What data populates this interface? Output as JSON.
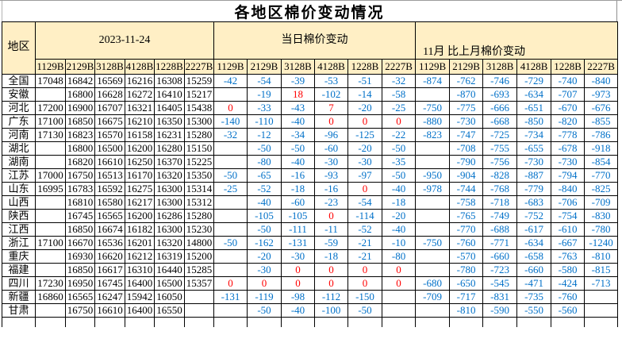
{
  "colors": {
    "header_fill": "#FFEFC5",
    "negative_text": "#0070C8",
    "nonnegative_text": "#FF0000",
    "grid_line": "#000000",
    "window_edge": "#9B9B9B"
  },
  "chart_data": {
    "type": "table",
    "title": "各地区棉价变动情况",
    "region_header": "地区",
    "groups": [
      "2023-11-24",
      "当日棉价变动",
      "11月 比上月棉价变动"
    ],
    "grade_codes": [
      "1129B",
      "2129B",
      "3128B",
      "4128B",
      "1228B",
      "2227B"
    ],
    "rows": [
      {
        "region": "全国",
        "prices": [
          "17048",
          "16842",
          "16569",
          "16216",
          "16308",
          "15259"
        ],
        "daily": [
          "-42",
          "-54",
          "-39",
          "-53",
          "-51",
          "-32"
        ],
        "monthly": [
          "-874",
          "-762",
          "-746",
          "-729",
          "-740",
          "-840"
        ]
      },
      {
        "region": "安徽",
        "prices": [
          "",
          "16800",
          "16628",
          "16272",
          "16410",
          "15217"
        ],
        "daily": [
          "",
          "-19",
          "18",
          "-102",
          "-14",
          "-58"
        ],
        "monthly": [
          "",
          "-870",
          "-693",
          "-634",
          "-707",
          "-973"
        ]
      },
      {
        "region": "河北",
        "prices": [
          "17200",
          "16900",
          "16707",
          "16321",
          "16405",
          "15438"
        ],
        "daily": [
          "0",
          "-33",
          "-43",
          "7",
          "-20",
          "-25"
        ],
        "monthly": [
          "-750",
          "-775",
          "-666",
          "-651",
          "-670",
          "-676"
        ]
      },
      {
        "region": "广东",
        "prices": [
          "17100",
          "16850",
          "16675",
          "16210",
          "16350",
          "15300"
        ],
        "daily": [
          "-140",
          "-110",
          "-40",
          "0",
          "0",
          "0"
        ],
        "monthly": [
          "-880",
          "-730",
          "-668",
          "-850",
          "-820",
          "-855"
        ]
      },
      {
        "region": "河南",
        "prices": [
          "17130",
          "16823",
          "16570",
          "16158",
          "16231",
          "15280"
        ],
        "daily": [
          "-32",
          "-12",
          "-34",
          "-96",
          "-125",
          "-22"
        ],
        "monthly": [
          "-823",
          "-747",
          "-725",
          "-734",
          "-778",
          "-786"
        ]
      },
      {
        "region": "湖北",
        "prices": [
          "",
          "16800",
          "16500",
          "16200",
          "16280",
          "15150"
        ],
        "daily": [
          "",
          "-50",
          "-50",
          "-60",
          "-20",
          "-50"
        ],
        "monthly": [
          "",
          "-708",
          "-755",
          "-655",
          "-678",
          "-918"
        ]
      },
      {
        "region": "湖南",
        "prices": [
          "",
          "16820",
          "16610",
          "16250",
          "16370",
          "15225"
        ],
        "daily": [
          "",
          "-80",
          "-40",
          "-30",
          "-30",
          "-35"
        ],
        "monthly": [
          "",
          "-790",
          "-756",
          "-730",
          "-730",
          "-854"
        ]
      },
      {
        "region": "江苏",
        "prices": [
          "17000",
          "16750",
          "16513",
          "16170",
          "16320",
          "15350"
        ],
        "daily": [
          "-50",
          "-65",
          "-16",
          "-93",
          "-97",
          "-50"
        ],
        "monthly": [
          "-950",
          "-904",
          "-828",
          "-887",
          "-794",
          "-770"
        ]
      },
      {
        "region": "山东",
        "prices": [
          "16995",
          "16783",
          "16592",
          "16275",
          "16300",
          "15314"
        ],
        "daily": [
          "-25",
          "-52",
          "-18",
          "-16",
          "0",
          "-40"
        ],
        "monthly": [
          "-978",
          "-744",
          "-768",
          "-779",
          "-840",
          "-825"
        ]
      },
      {
        "region": "山西",
        "prices": [
          "",
          "16810",
          "16580",
          "16217",
          "16300",
          "15312"
        ],
        "daily": [
          "",
          "-40",
          "-60",
          "-23",
          "-54",
          "-18"
        ],
        "monthly": [
          "",
          "-758",
          "-718",
          "-683",
          "-706",
          "-709"
        ]
      },
      {
        "region": "陕西",
        "prices": [
          "",
          "16745",
          "16565",
          "16200",
          "16286",
          "15280"
        ],
        "daily": [
          "",
          "-105",
          "-105",
          "0",
          "-114",
          "-20"
        ],
        "monthly": [
          "",
          "-765",
          "-749",
          "-752",
          "-754",
          "-830"
        ]
      },
      {
        "region": "江西",
        "prices": [
          "",
          "16850",
          "16674",
          "16182",
          "16300",
          "15230"
        ],
        "daily": [
          "",
          "-50",
          "-111",
          "-11",
          "-52",
          "-40"
        ],
        "monthly": [
          "",
          "-770",
          "-688",
          "-617",
          "-610",
          "-780"
        ]
      },
      {
        "region": "浙江",
        "prices": [
          "17100",
          "16670",
          "16536",
          "16201",
          "16320",
          "14800"
        ],
        "daily": [
          "-50",
          "-162",
          "-131",
          "-59",
          "-21",
          "-10"
        ],
        "monthly": [
          "-750",
          "-760",
          "-771",
          "-634",
          "-667",
          "-1240"
        ]
      },
      {
        "region": "重庆",
        "prices": [
          "",
          "16930",
          "16620",
          "16212",
          "16319",
          "15200"
        ],
        "daily": [
          "",
          "-20",
          "-30",
          "-18",
          "-21",
          "-80"
        ],
        "monthly": [
          "",
          "-570",
          "-660",
          "-658",
          "-763",
          "-810"
        ]
      },
      {
        "region": "福建",
        "prices": [
          "",
          "16850",
          "16617",
          "16310",
          "16440",
          "15285"
        ],
        "daily": [
          "",
          "-30",
          "0",
          "0",
          "0",
          "0"
        ],
        "monthly": [
          "",
          "-780",
          "-723",
          "-660",
          "-580",
          "-815"
        ]
      },
      {
        "region": "四川",
        "prices": [
          "17230",
          "16950",
          "16745",
          "16400",
          "16500",
          "15357"
        ],
        "daily": [
          "0",
          "0",
          "0",
          "0",
          "0",
          "0"
        ],
        "monthly": [
          "-680",
          "-650",
          "-545",
          "-471",
          "-424",
          "-713"
        ]
      },
      {
        "region": "新疆",
        "prices": [
          "16860",
          "16565",
          "16247",
          "15942",
          "16050",
          ""
        ],
        "daily": [
          "-131",
          "-119",
          "-98",
          "-112",
          "-150",
          ""
        ],
        "monthly": [
          "-709",
          "-717",
          "-831",
          "-735",
          "-760",
          ""
        ]
      },
      {
        "region": "甘肃",
        "prices": [
          "",
          "16750",
          "16610",
          "16400",
          "16550",
          ""
        ],
        "daily": [
          "",
          "-50",
          "-40",
          "-100",
          "-50",
          ""
        ],
        "monthly": [
          "",
          "-810",
          "-590",
          "-550",
          "-560",
          ""
        ]
      }
    ]
  }
}
